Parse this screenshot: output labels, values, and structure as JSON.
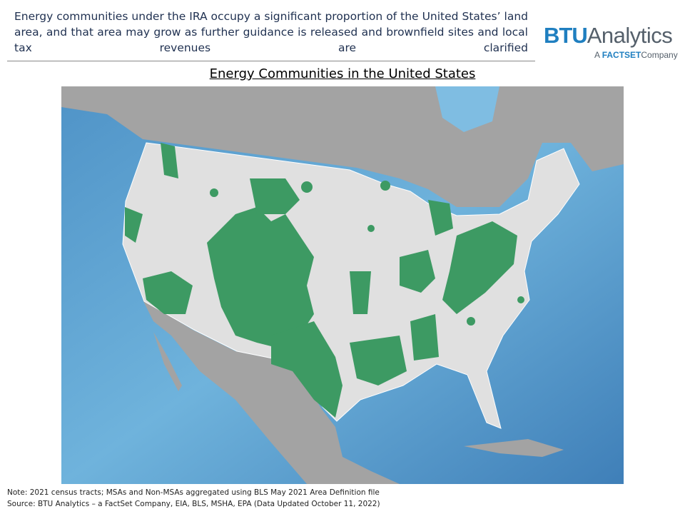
{
  "header": {
    "text": "Energy communities under the IRA occupy a significant proportion of the United States’ land area, and that area may grow as further guidance is released and brownfield sites and local tax revenues are clarified"
  },
  "logo": {
    "brand_bold": "BTU",
    "brand": "Analytics",
    "tagline_prefix": "A",
    "tagline_bold": "FACTSET",
    "tagline_suffix": "Company"
  },
  "map": {
    "title": "Energy Communities in the United States"
  },
  "footer": {
    "note": "Note: 2021 census tracts; MSAs and Non-MSAs aggregated using BLS May 2021 Area Definition file",
    "source": "Source: BTU Analytics – a FactSet Company, EIA, BLS, MSHA, EPA (Data Updated October 11, 2022)"
  }
}
